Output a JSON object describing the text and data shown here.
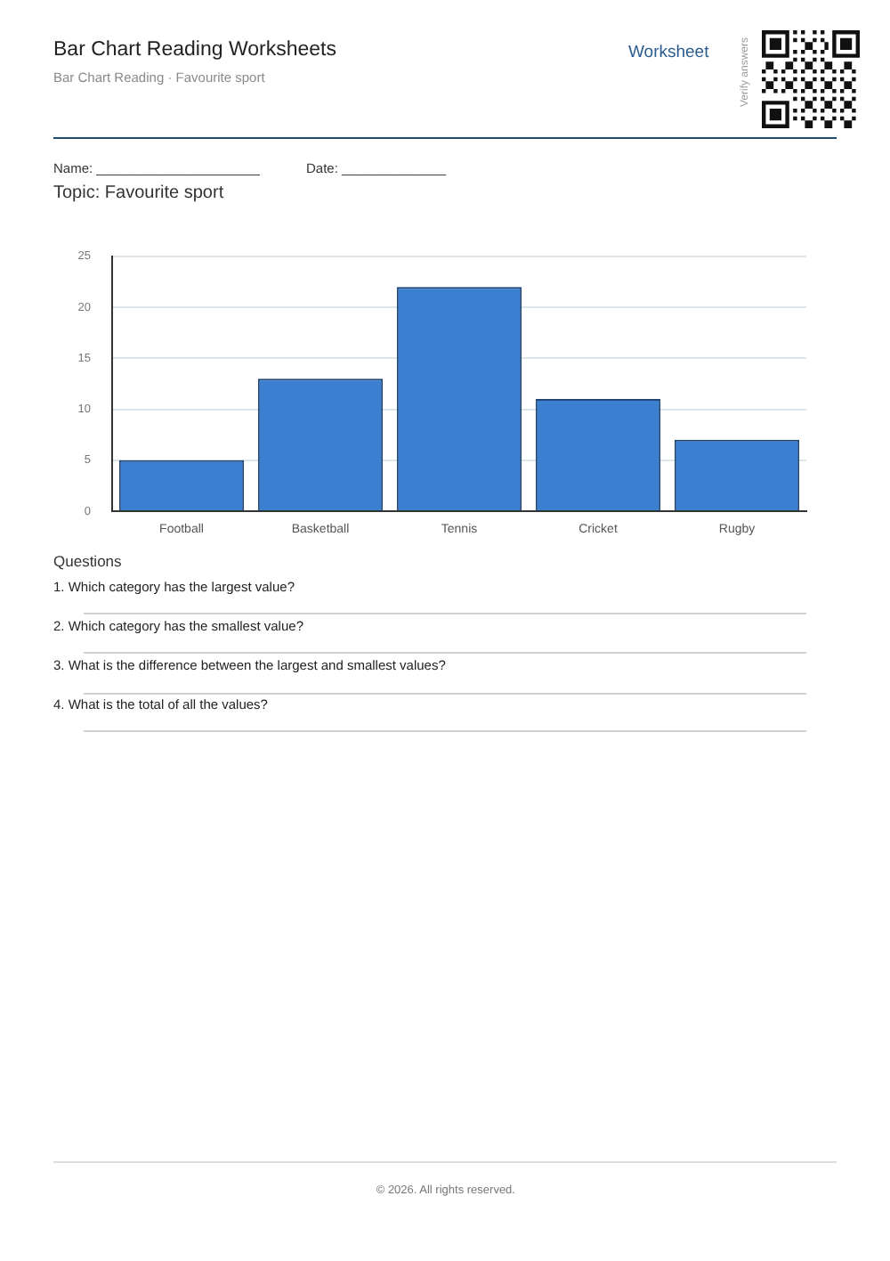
{
  "chart_data": {
    "type": "bar",
    "title": "Bar Chart Reading Worksheets",
    "subtitle": "Bar Chart Reading · Favourite sport",
    "annotations": [
      "Worksheet",
      "Verify answers",
      "Name: ______________________",
      "Date: ______________",
      "Topic: Favourite sport",
      "Questions",
      "1. Which category has the largest value?",
      "2. Which category has the smallest value?",
      "3. What is the difference between the largest and smallest values?",
      "4. What is the total of all the values?",
      "© 2026. All rights reserved."
    ],
    "categories": [
      "Football",
      "Basketball",
      "Tennis",
      "Cricket",
      "Rugby"
    ],
    "values": [
      5,
      13,
      22,
      11,
      7
    ],
    "color": "#3b7fd1",
    "ylim": [
      0,
      25
    ],
    "yticks": [
      0,
      5,
      10,
      15,
      20,
      25
    ],
    "grid": "y"
  }
}
